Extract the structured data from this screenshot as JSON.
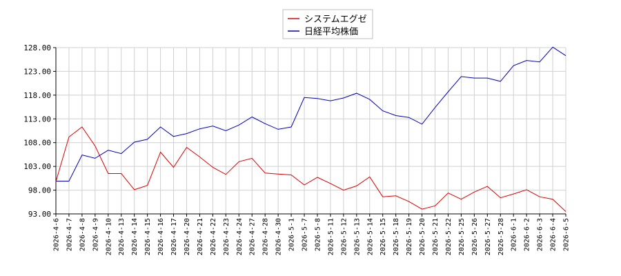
{
  "chart_data": {
    "type": "line",
    "categories": [
      "2026-4-6",
      "2026-4-7",
      "2026-4-8",
      "2026-4-9",
      "2026-4-10",
      "2026-4-13",
      "2026-4-14",
      "2026-4-15",
      "2026-4-16",
      "2026-4-17",
      "2026-4-20",
      "2026-4-21",
      "2026-4-22",
      "2026-4-23",
      "2026-4-24",
      "2026-4-27",
      "2026-4-28",
      "2026-4-30",
      "2026-5-1",
      "2026-5-7",
      "2026-5-8",
      "2026-5-11",
      "2026-5-12",
      "2026-5-13",
      "2026-5-14",
      "2026-5-15",
      "2026-5-18",
      "2026-5-19",
      "2026-5-20",
      "2026-5-21",
      "2026-5-22",
      "2026-5-25",
      "2026-5-26",
      "2026-5-27",
      "2026-5-28",
      "2026-6-1",
      "2026-6-2",
      "2026-6-3",
      "2026-6-4",
      "2026-6-5"
    ],
    "series": [
      {
        "name": "システムエグゼ",
        "color": "#dd0000",
        "values": [
          99.8,
          109.2,
          111.3,
          107.3,
          101.5,
          101.5,
          98.1,
          99.0,
          106.0,
          102.8,
          107.0,
          105.0,
          102.8,
          101.3,
          104.0,
          104.7,
          101.6,
          101.4,
          101.2,
          99.1,
          100.7,
          99.4,
          98.0,
          98.9,
          100.8,
          96.6,
          96.8,
          95.6,
          94.0,
          94.7,
          97.4,
          96.1,
          97.6,
          98.8,
          96.4,
          97.2,
          98.1,
          96.6,
          96.1,
          93.5
        ]
      },
      {
        "name": "日経平均株価",
        "color": "#0000bb",
        "values": [
          99.9,
          99.9,
          105.4,
          104.7,
          106.4,
          105.7,
          108.1,
          108.7,
          111.3,
          109.3,
          109.9,
          110.9,
          111.5,
          110.5,
          111.7,
          113.4,
          112.0,
          110.8,
          111.3,
          117.5,
          117.3,
          116.8,
          117.4,
          118.4,
          117.1,
          114.7,
          113.7,
          113.3,
          111.9,
          115.4,
          118.7,
          121.9,
          121.6,
          121.6,
          120.9,
          124.2,
          125.3,
          125.0,
          128.1,
          126.3
        ]
      }
    ],
    "ylim": [
      93.0,
      128.0
    ],
    "yticks": [
      "93.00",
      "98.00",
      "103.00",
      "108.00",
      "113.00",
      "118.00",
      "123.00",
      "128.00"
    ],
    "grid": true,
    "legend_position": "top-center"
  }
}
